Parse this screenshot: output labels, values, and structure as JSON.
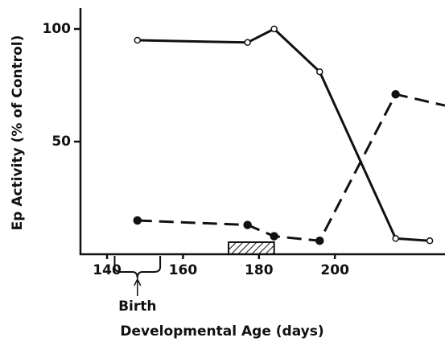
{
  "chart_data": {
    "type": "line",
    "x_label": "Developmental Age (days)",
    "y_label": "Ep Activity (% of Control)",
    "series": [
      {
        "x": [
          148,
          177,
          184,
          196,
          216,
          225
        ],
        "values": [
          95,
          94,
          100,
          81,
          7,
          6
        ],
        "style": "solid",
        "marker": "open",
        "color": "#111111"
      },
      {
        "x": [
          148,
          177,
          184,
          196,
          216,
          229
        ],
        "values": [
          15,
          13,
          8,
          6,
          71,
          66
        ],
        "style": "dashed",
        "marker": "filled",
        "color": "#111111"
      }
    ],
    "xlim": [
      133,
      229
    ],
    "ylim": [
      0,
      110
    ],
    "xticks": [
      140,
      160,
      180,
      200
    ],
    "yticks": [
      50,
      100
    ],
    "hatched_range": [
      172,
      184
    ],
    "annotation": {
      "text": "Birth",
      "x": 148,
      "range": [
        142,
        154
      ]
    }
  }
}
